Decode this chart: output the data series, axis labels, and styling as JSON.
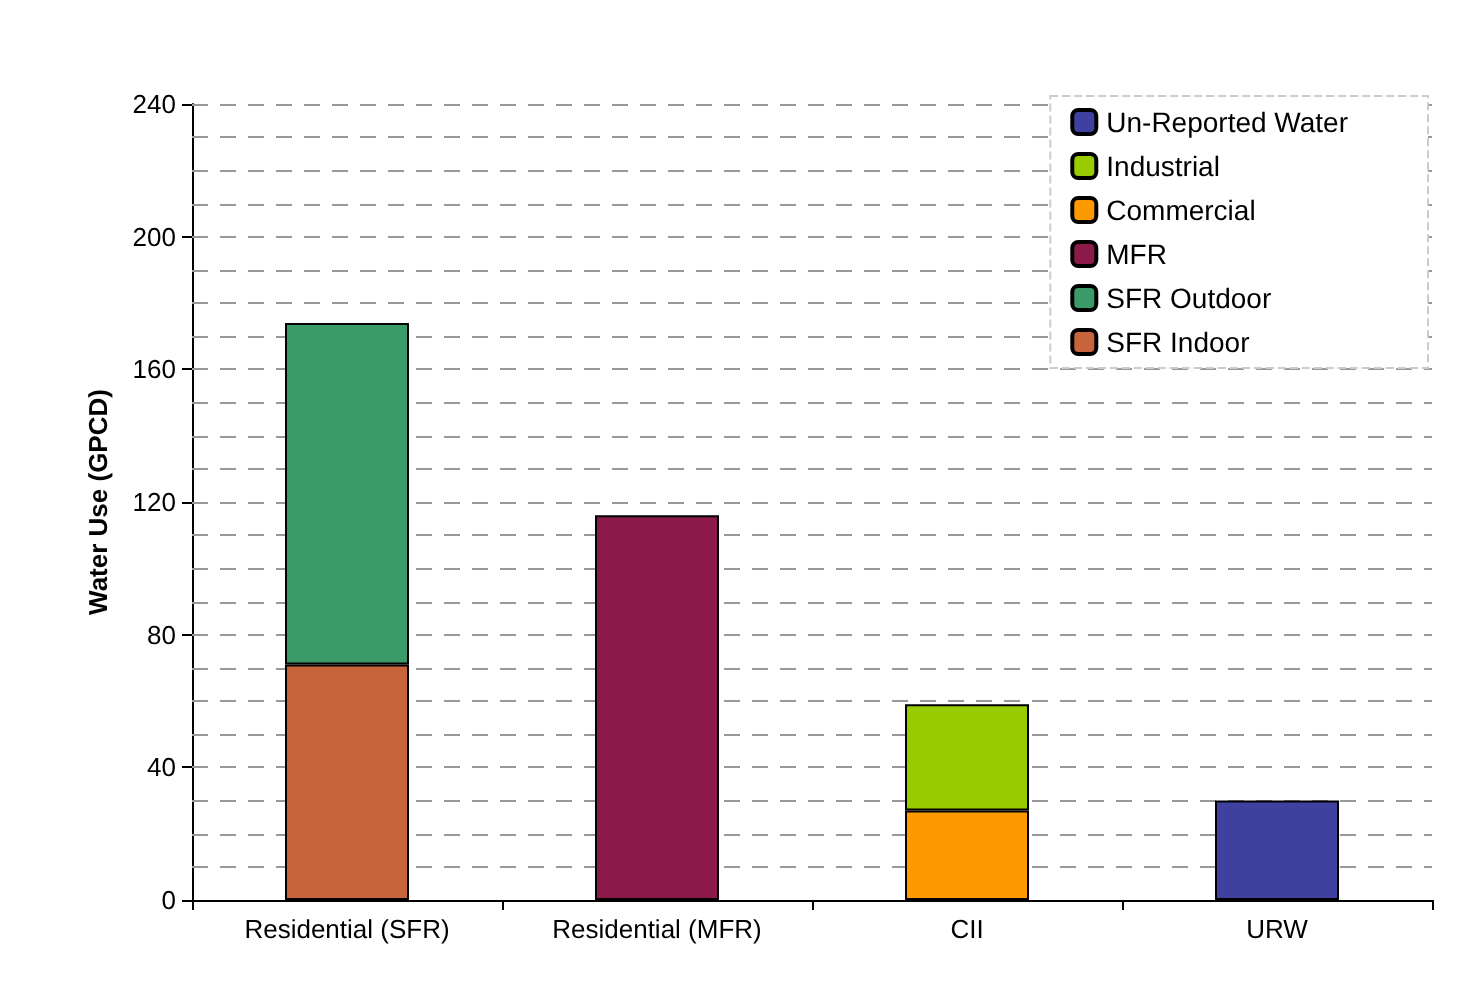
{
  "chart_data": {
    "type": "bar",
    "ylabel": "Water Use (GPCD)",
    "categories": [
      "Residential (SFR)",
      "Residential (MFR)",
      "CII",
      "URW"
    ],
    "stacked": true,
    "series": [
      {
        "name": "SFR Indoor",
        "color": "#c8643c",
        "values": [
          71,
          null,
          null,
          null
        ]
      },
      {
        "name": "SFR Outdoor",
        "color": "#3a9a6a",
        "values": [
          103,
          null,
          null,
          null
        ]
      },
      {
        "name": "MFR",
        "color": "#8b1a4a",
        "values": [
          null,
          116,
          null,
          null
        ]
      },
      {
        "name": "Commercial",
        "color": "#ff9900",
        "values": [
          null,
          null,
          27,
          null
        ]
      },
      {
        "name": "Industrial",
        "color": "#99cc00",
        "values": [
          null,
          null,
          32,
          null
        ]
      },
      {
        "name": "Un-Reported Water",
        "color": "#4040a0",
        "values": [
          null,
          null,
          null,
          30
        ]
      }
    ],
    "ylim": [
      0,
      240
    ],
    "yticks": [
      0,
      {
        "value": 10,
        "label": null
      },
      {
        "value": 20,
        "label": null
      },
      {
        "value": 30,
        "label": null
      },
      40,
      {
        "value": 50,
        "label": null
      },
      {
        "value": 60,
        "label": null
      },
      {
        "value": 70,
        "label": null
      },
      80,
      {
        "value": 90,
        "label": null
      },
      {
        "value": 100,
        "label": null
      },
      {
        "value": 110,
        "label": null
      },
      120,
      {
        "value": 130,
        "label": null
      },
      {
        "value": 140,
        "label": null
      },
      {
        "value": 150,
        "label": null
      },
      160,
      {
        "value": 170,
        "label": null
      },
      {
        "value": 180,
        "label": null
      },
      {
        "value": 190,
        "label": null
      },
      200,
      {
        "value": 210,
        "label": null
      },
      {
        "value": 220,
        "label": null
      },
      {
        "value": 230,
        "label": null
      },
      240
    ],
    "grid": "y",
    "legend": "top right"
  }
}
